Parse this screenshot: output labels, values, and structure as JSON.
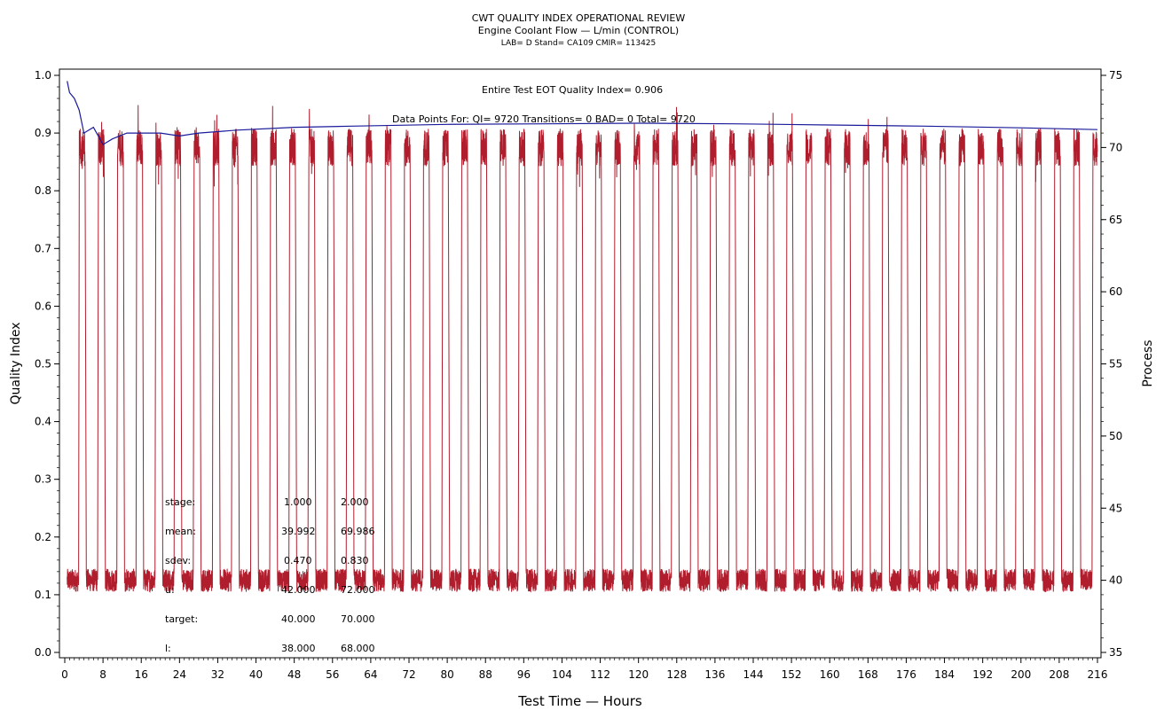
{
  "header": {
    "title": "CWT QUALITY INDEX OPERATIONAL REVIEW",
    "subtitle": "Engine Coolant Flow — L/min (CONTROL)",
    "meta": "LAB= D Stand= CA109 CMIR= 113425"
  },
  "annotations": {
    "quality_index_text": "Entire Test EOT Quality Index=   0.906",
    "data_points_text": "Data Points For: QI=  9720 Transitions=     0 BAD=     0 Total=  9720"
  },
  "stats": {
    "rows": [
      {
        "label": "stage:",
        "v1": "1.000",
        "v2": "2.000"
      },
      {
        "label": "mean:",
        "v1": "39.992",
        "v2": "69.986"
      },
      {
        "label": "sdev:",
        "v1": "0.470",
        "v2": "0.830"
      },
      {
        "label": "u:",
        "v1": "42.000",
        "v2": "72.000"
      },
      {
        "label": "target:",
        "v1": "40.000",
        "v2": "70.000"
      },
      {
        "label": "l:",
        "v1": "38.000",
        "v2": "68.000"
      }
    ]
  },
  "colors": {
    "process": "#b01e2e",
    "quality_index": "#1a1a9a",
    "axis": "#000000"
  },
  "chart_data": {
    "type": "line",
    "xlabel": "Test Time — Hours",
    "ylabel": "Quality Index",
    "y2label": "Process",
    "xlim": [
      0,
      216
    ],
    "ylim": [
      0,
      1.0
    ],
    "y2lim": [
      35,
      75
    ],
    "x_ticks": [
      0,
      8,
      16,
      24,
      32,
      40,
      48,
      56,
      64,
      72,
      80,
      88,
      96,
      104,
      112,
      120,
      128,
      136,
      144,
      152,
      160,
      168,
      176,
      184,
      192,
      200,
      208,
      216
    ],
    "y_ticks": [
      0.0,
      0.1,
      0.2,
      0.3,
      0.4,
      0.5,
      0.6,
      0.7,
      0.8,
      0.9,
      1.0
    ],
    "y2_ticks": [
      35,
      40,
      45,
      50,
      55,
      60,
      65,
      70,
      75
    ],
    "x_tick_labels": [
      "0",
      "8",
      "16",
      "24",
      "32",
      "40",
      "48",
      "56",
      "64",
      "72",
      "80",
      "88",
      "96",
      "104",
      "112",
      "120",
      "128",
      "136",
      "144",
      "152",
      "160",
      "168",
      "176",
      "184",
      "192",
      "200",
      "208",
      "216"
    ],
    "y_tick_labels": [
      "0.0",
      "0.1",
      "0.2",
      "0.3",
      "0.4",
      "0.5",
      "0.6",
      "0.7",
      "0.8",
      "0.9",
      "1.0"
    ],
    "y2_tick_labels": [
      "35",
      "40",
      "45",
      "50",
      "55",
      "60",
      "65",
      "70",
      "75"
    ],
    "series": [
      {
        "axis": "right",
        "stage_low": 40,
        "stage_high": 70,
        "cycle_hours": 4,
        "cycles": 54
      },
      {
        "axis": "left",
        "x": [
          0.5,
          1.0,
          2.0,
          3.0,
          4.0,
          6.0,
          8.0,
          10.0,
          13.0,
          16.0,
          20.0,
          24.0,
          28.0,
          36.0,
          48.0,
          60.0,
          80.0,
          100.0,
          120.0,
          140.0,
          160.0,
          180.0,
          200.0,
          216.0
        ],
        "values": [
          0.99,
          0.97,
          0.96,
          0.94,
          0.9,
          0.91,
          0.88,
          0.89,
          0.9,
          0.9,
          0.9,
          0.895,
          0.9,
          0.905,
          0.91,
          0.912,
          0.915,
          0.916,
          0.917,
          0.916,
          0.914,
          0.912,
          0.909,
          0.906
        ]
      }
    ]
  }
}
